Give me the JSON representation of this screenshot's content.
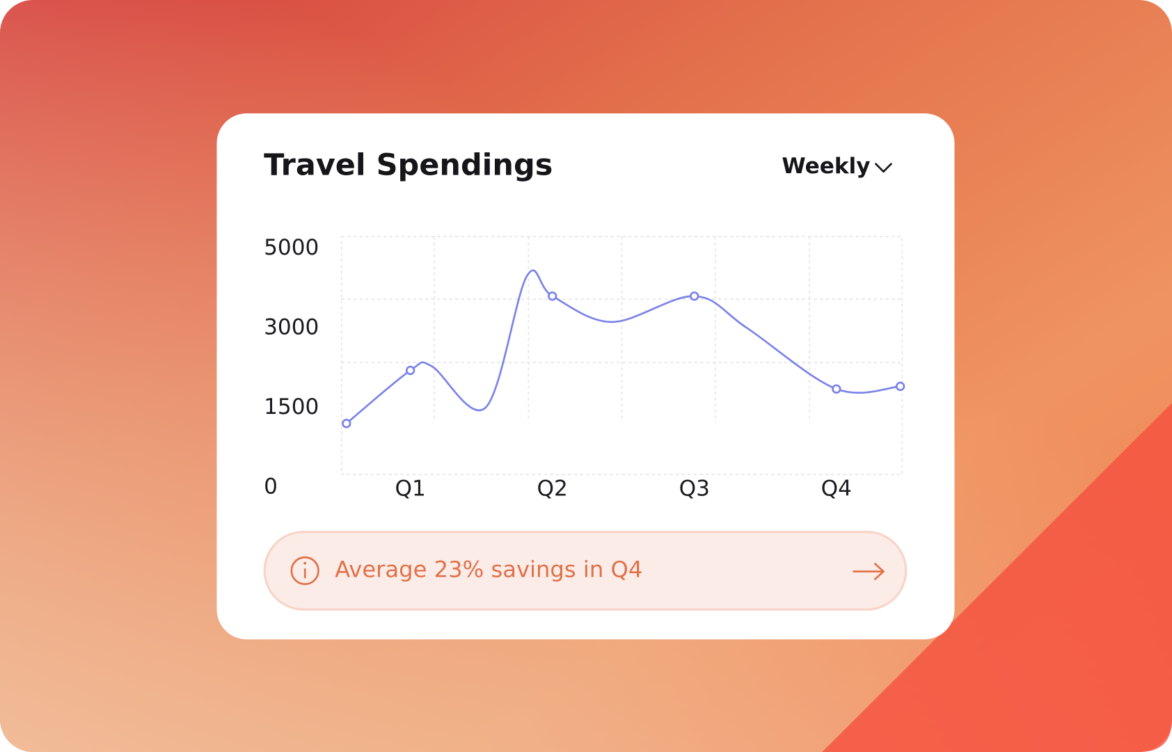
{
  "chart_data": {
    "type": "line",
    "title": "Travel Spendings",
    "x": [
      0.55,
      1,
      1.15,
      1.53,
      1.82,
      2,
      2.42,
      3,
      3.37,
      4,
      4.45
    ],
    "values": [
      1200,
      2200,
      2280,
      1500,
      4300,
      3800,
      3150,
      3800,
      3000,
      1850,
      1900
    ],
    "markers": [
      0,
      1,
      5,
      7,
      9,
      10
    ],
    "color": "#7b83e8",
    "xlim": [
      0.5,
      4.5
    ],
    "xticks": [
      {
        "value": 1,
        "label": "Q1"
      },
      {
        "value": 2,
        "label": "Q2"
      },
      {
        "value": 3,
        "label": "Q3"
      },
      {
        "value": 4,
        "label": "Q4"
      }
    ],
    "ylim": [
      0,
      5000
    ],
    "yticks": [
      0,
      1500,
      3000,
      5000
    ]
  },
  "dropdown": "Weekly",
  "banner": "Average 23% savings in Q4"
}
